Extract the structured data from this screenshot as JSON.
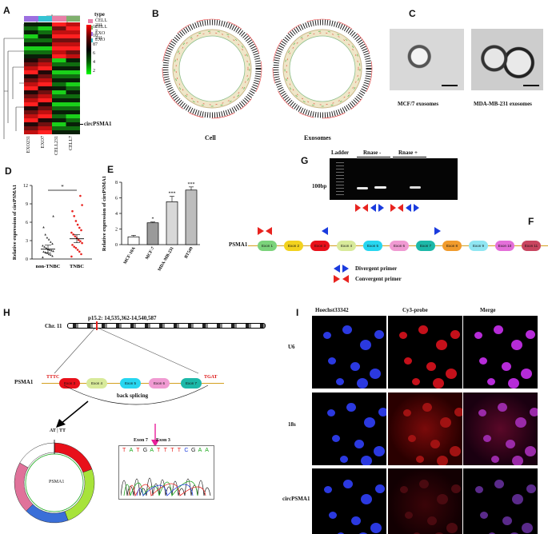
{
  "panels": {
    "A": "A",
    "B": "B",
    "C": "C",
    "D": "D",
    "E": "E",
    "F": "F",
    "G": "G",
    "H": "H",
    "I": "I"
  },
  "heatmap": {
    "legend_title": "type",
    "legend_items": [
      "CELL 231",
      "CELL 7",
      "EXO 231",
      "EXO 7"
    ],
    "legend_colors": [
      "#e87fa7",
      "#7fb06e",
      "#9c6fe0",
      "#35c3d3"
    ],
    "scale_ticks": [
      "12",
      "10",
      "8",
      "6",
      "4",
      "2"
    ],
    "columns": [
      "EXO231",
      "EXO7",
      "CELL231",
      "CELL7"
    ],
    "marker": "circPSMA1"
  },
  "circos": {
    "left_label": "Cell",
    "right_label": "Exosomes"
  },
  "em": {
    "left_caption": "MCF/7 exosomes",
    "right_caption": "MDA-MB-231 exosomes"
  },
  "chart_data": [
    {
      "panel": "D",
      "type": "scatter",
      "ylabel": "Relative expression of circPSMA1",
      "ylim": [
        0,
        12
      ],
      "yticks": [
        0,
        3,
        6,
        9,
        12
      ],
      "categories": [
        "non-TNBC",
        "TNBC"
      ],
      "significance": "*",
      "series": [
        {
          "values": [
            0.3,
            0.5,
            0.7,
            0.8,
            1.0,
            1.1,
            1.2,
            1.3,
            1.4,
            1.5,
            1.6,
            1.8,
            2.0,
            2.2,
            2.5,
            2.8,
            3.2,
            3.5,
            4.0,
            5.2,
            7.0
          ],
          "mean": 1.6
        },
        {
          "values": [
            0.4,
            0.8,
            1.2,
            1.5,
            1.8,
            2.0,
            2.3,
            2.6,
            2.9,
            3.1,
            3.4,
            3.7,
            4.0,
            4.3,
            4.7,
            5.1,
            5.6,
            6.2,
            7.0,
            7.8,
            8.8,
            10.3
          ],
          "mean": 3.3
        }
      ]
    },
    {
      "panel": "E",
      "type": "bar",
      "ylabel": "Relative expression of circPSMA1",
      "ylim": [
        0,
        8
      ],
      "yticks": [
        0,
        2,
        4,
        6,
        8
      ],
      "categories": [
        "MCF-10A",
        "MCF-7",
        "MDA-MB-231",
        "BT549"
      ],
      "values": [
        1.0,
        2.8,
        5.5,
        7.0
      ],
      "errors": [
        0.2,
        0.1,
        0.7,
        0.4
      ],
      "significance": [
        "",
        "*",
        "***",
        "***"
      ]
    }
  ],
  "gel": {
    "ladder": "Ladder",
    "rnase_minus": "Rnase -",
    "rnase_plus": "Rnase +",
    "size_marker": "100bp"
  },
  "gene_model": {
    "gene": "PSMA1",
    "exons": [
      "Exon 1",
      "Exon 2",
      "Exon 3",
      "Exon 4",
      "Exon 5",
      "Exon 6",
      "Exon 7",
      "Exon 8",
      "Exon 9",
      "Exon 10",
      "Exon 11"
    ],
    "exon_colors": [
      "#7bd37b",
      "#f2d21e",
      "#e8101a",
      "#d8ea9a",
      "#27d6f0",
      "#f09ad2",
      "#1cb8a8",
      "#f19b2c",
      "#8fe6f2",
      "#e46fd9",
      "#c8455f"
    ],
    "divergent_label": "Divergent primer",
    "convergent_label": "Convergent primer"
  },
  "backsplice": {
    "locus": "p15.2: 14,535,362-14,540,587",
    "chromosome": "Chr. 11",
    "gene": "PSMA1",
    "exons": [
      "Exon 3",
      "Exon 4",
      "Exon 5",
      "Exon 6",
      "Exon 7"
    ],
    "left_seq": "TTTC",
    "right_seq": "TGAT",
    "back_splicing": "back splicing",
    "junction_top": "AT | TT",
    "circle_label": "PSMA1",
    "seq_exon_left": "Exon 7",
    "seq_exon_right": "Exon 3",
    "sequence": [
      "T",
      "A",
      "T",
      "G",
      "A",
      "T",
      "T",
      "T",
      "T",
      "C",
      "G",
      "A",
      "A"
    ]
  },
  "fish": {
    "columns": [
      "Hoechst33342",
      "Cy3-probe",
      "Merge"
    ],
    "rows": [
      "U6",
      "18s",
      "circPSMA1"
    ]
  }
}
